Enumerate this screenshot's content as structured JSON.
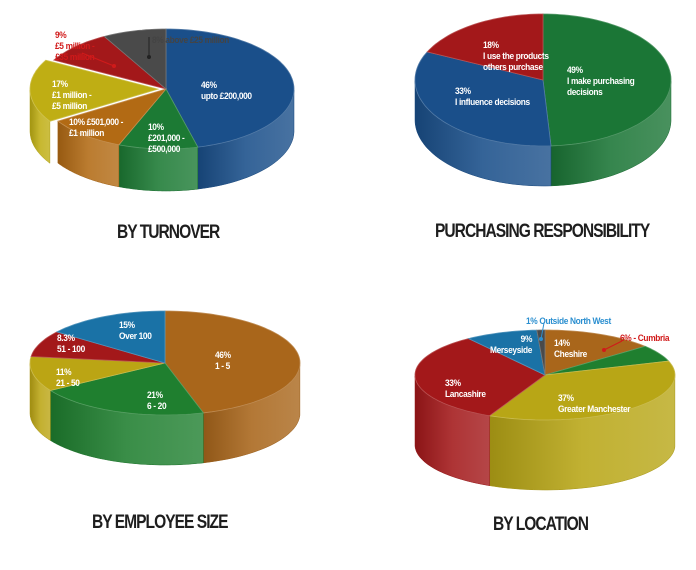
{
  "chart_data": [
    {
      "type": "pie",
      "title": "BY TURNOVER",
      "categories": [
        "upto £200,000",
        "£201,000 - £500,000",
        "£501,000 - £1 million",
        "£1 million - £5 million",
        "£5 million - £35 million",
        "above £25 million"
      ],
      "values": [
        46,
        10,
        10,
        17,
        9,
        8
      ],
      "colors": [
        "#1a4f8a",
        "#1c7a34",
        "#b26a14",
        "#bfae14",
        "#a3181a",
        "#4a4a4a"
      ],
      "exploded": [
        false,
        false,
        false,
        true,
        false,
        false
      ],
      "style": "3d"
    },
    {
      "type": "pie",
      "title": "PURCHASING RESPONSIBILITY",
      "categories": [
        "I make purchasing decisions",
        "I influence decisions",
        "I use the products others purchase"
      ],
      "values": [
        49,
        33,
        18
      ],
      "colors": [
        "#1b7636",
        "#1a4f8a",
        "#a3181a"
      ],
      "style": "3d"
    },
    {
      "type": "pie",
      "title": "BY EMPLOYEE SIZE",
      "categories": [
        "1 - 5",
        "6 - 20",
        "21 - 50",
        "51 - 100",
        "Over 100"
      ],
      "values": [
        46,
        21,
        11,
        8.3,
        15
      ],
      "colors": [
        "#a9661b",
        "#1f7f2f",
        "#bba514",
        "#a3181a",
        "#1a72a6"
      ],
      "style": "3d"
    },
    {
      "type": "pie",
      "title": "BY LOCATION",
      "categories": [
        "Cheshire",
        "Cumbria",
        "Greater Manchester",
        "Lancashire",
        "Merseyside",
        "Outside North West"
      ],
      "values": [
        14,
        6,
        37,
        33,
        9,
        1
      ],
      "colors": [
        "#a9661b",
        "#1f7f2f",
        "#b8a616",
        "#a3181a",
        "#1a72a6",
        "#4a4a4a"
      ],
      "style": "3d"
    }
  ],
  "charts": {
    "turnover": {
      "title": "BY TURNOVER",
      "labels": {
        "blue": [
          "46%",
          "upto £200,000"
        ],
        "green": [
          "10%",
          "£201,000 -",
          "£500,000"
        ],
        "orange": [
          "10% £501,000 -",
          "£1 million"
        ],
        "yellow": [
          "17%",
          "£1 million -",
          "£5 million"
        ],
        "red": [
          "9%",
          "£5 million -",
          "£35 million"
        ],
        "gray": "8% above £25 million"
      }
    },
    "purchasing": {
      "title": "PURCHASING RESPONSIBILITY",
      "labels": {
        "green": [
          "49%",
          "I make purchasing",
          "decisions"
        ],
        "blue": [
          "33%",
          "I influence decisions"
        ],
        "red": [
          "18%",
          "I use the products",
          "others purchase"
        ]
      }
    },
    "employee": {
      "title": "BY EMPLOYEE SIZE",
      "labels": {
        "orange": [
          "46%",
          "1 - 5"
        ],
        "green": [
          "21%",
          "6 - 20"
        ],
        "yellow": [
          "11%",
          "21 - 50"
        ],
        "red": [
          "8.3%",
          "51 - 100"
        ],
        "blue": [
          "15%",
          "Over 100"
        ]
      }
    },
    "location": {
      "title": "BY LOCATION",
      "labels": {
        "cheshire": [
          "14%",
          "Cheshire"
        ],
        "cumbria": "6% - Cumbria",
        "manchester": [
          "37%",
          "Greater Manchester"
        ],
        "lancashire": [
          "33%",
          "Lancashire"
        ],
        "merseyside": [
          "9%",
          "Merseyside"
        ],
        "outside": "1% Outside North West"
      }
    }
  }
}
